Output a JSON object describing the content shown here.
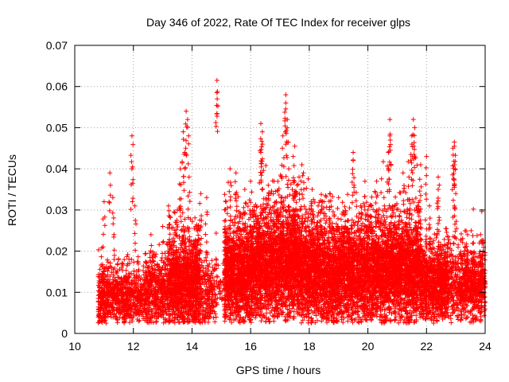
{
  "chart_data": {
    "type": "scatter",
    "title": "Day 346 of 2022, Rate Of TEC Index for receiver glps",
    "xlabel": "GPS time / hours",
    "ylabel": "ROTI / TECUs",
    "xlim": [
      10,
      24
    ],
    "ylim": [
      0,
      0.07
    ],
    "xticks": [
      10,
      12,
      14,
      16,
      18,
      20,
      22,
      24
    ],
    "xtick_labels": [
      "10",
      "12",
      "14",
      "16",
      "18",
      "20",
      "22",
      "24"
    ],
    "yticks": [
      0,
      0.01,
      0.02,
      0.03,
      0.04,
      0.05,
      0.06,
      0.07
    ],
    "ytick_labels": [
      "0",
      "0.01",
      "0.02",
      "0.03",
      "0.04",
      "0.05",
      "0.06",
      "0.07"
    ],
    "grid": true,
    "marker": "+",
    "color": "#ff0000",
    "series": [
      {
        "name": "ROTI",
        "clusters": [
          {
            "t0": 10.8,
            "t1": 11.85,
            "density": 55,
            "base": 0.0085,
            "spread": 0.006,
            "peaks": [
              [
                11.2,
                0.039
              ],
              [
                11.3,
                0.033
              ],
              [
                11.0,
                0.032
              ]
            ]
          },
          {
            "t0": 11.85,
            "t1": 12.4,
            "density": 40,
            "base": 0.009,
            "spread": 0.006,
            "peaks": [
              [
                11.95,
                0.048
              ],
              [
                11.95,
                0.04
              ],
              [
                12.05,
                0.031
              ]
            ]
          },
          {
            "t0": 12.4,
            "t1": 13.2,
            "density": 55,
            "base": 0.01,
            "spread": 0.007,
            "peaks": [
              [
                12.6,
                0.024
              ],
              [
                13.0,
                0.026
              ]
            ]
          },
          {
            "t0": 13.2,
            "t1": 14.3,
            "density": 110,
            "base": 0.012,
            "spread": 0.009,
            "peaks": [
              [
                13.8,
                0.054
              ],
              [
                13.85,
                0.052
              ],
              [
                13.7,
                0.049
              ],
              [
                13.75,
                0.044
              ],
              [
                13.6,
                0.04
              ],
              [
                13.9,
                0.038
              ],
              [
                13.2,
                0.031
              ],
              [
                13.5,
                0.03
              ]
            ]
          },
          {
            "t0": 14.3,
            "t1": 14.85,
            "density": 35,
            "base": 0.01,
            "spread": 0.007,
            "peaks": [
              [
                14.3,
                0.034
              ],
              [
                14.5,
                0.033
              ]
            ]
          },
          {
            "t0": 14.85,
            "t1": 15.1,
            "density": 10,
            "base": 0.011,
            "spread": 0.005,
            "peaks": [
              [
                14.85,
                0.0615
              ],
              [
                14.85,
                0.0585
              ]
            ]
          },
          {
            "t0": 15.1,
            "t1": 16.2,
            "density": 120,
            "base": 0.014,
            "spread": 0.01,
            "peaks": [
              [
                15.3,
                0.04
              ],
              [
                15.5,
                0.039
              ],
              [
                15.8,
                0.035
              ],
              [
                16.0,
                0.037
              ]
            ]
          },
          {
            "t0": 16.2,
            "t1": 16.9,
            "density": 120,
            "base": 0.016,
            "spread": 0.011,
            "peaks": [
              [
                16.35,
                0.051
              ],
              [
                16.4,
                0.049
              ],
              [
                16.4,
                0.046
              ],
              [
                16.35,
                0.044
              ],
              [
                16.6,
                0.036
              ],
              [
                16.8,
                0.037
              ]
            ]
          },
          {
            "t0": 16.9,
            "t1": 17.6,
            "density": 130,
            "base": 0.017,
            "spread": 0.011,
            "peaks": [
              [
                17.2,
                0.058
              ],
              [
                17.2,
                0.056
              ],
              [
                17.25,
                0.052
              ],
              [
                17.1,
                0.048
              ],
              [
                17.45,
                0.043
              ],
              [
                17.3,
                0.04
              ],
              [
                17.5,
                0.037
              ]
            ]
          },
          {
            "t0": 17.6,
            "t1": 18.4,
            "density": 120,
            "base": 0.015,
            "spread": 0.01,
            "peaks": [
              [
                17.75,
                0.041
              ],
              [
                17.8,
                0.039
              ],
              [
                17.65,
                0.038
              ],
              [
                18.1,
                0.035
              ]
            ]
          },
          {
            "t0": 18.4,
            "t1": 19.3,
            "density": 110,
            "base": 0.014,
            "spread": 0.01,
            "peaks": [
              [
                18.5,
                0.032
              ],
              [
                18.7,
                0.034
              ],
              [
                19.0,
                0.033
              ]
            ]
          },
          {
            "t0": 19.3,
            "t1": 20.1,
            "density": 110,
            "base": 0.014,
            "spread": 0.01,
            "peaks": [
              [
                19.5,
                0.044
              ],
              [
                19.5,
                0.042
              ],
              [
                19.9,
                0.037
              ],
              [
                19.75,
                0.031
              ]
            ]
          },
          {
            "t0": 20.1,
            "t1": 20.9,
            "density": 120,
            "base": 0.015,
            "spread": 0.01,
            "peaks": [
              [
                20.75,
                0.052
              ],
              [
                20.75,
                0.048
              ],
              [
                20.7,
                0.044
              ],
              [
                20.7,
                0.04
              ],
              [
                20.3,
                0.037
              ],
              [
                20.55,
                0.033
              ]
            ]
          },
          {
            "t0": 20.9,
            "t1": 21.8,
            "density": 120,
            "base": 0.015,
            "spread": 0.01,
            "peaks": [
              [
                21.55,
                0.052
              ],
              [
                21.6,
                0.05
              ],
              [
                21.5,
                0.048
              ],
              [
                21.5,
                0.046
              ],
              [
                21.2,
                0.039
              ],
              [
                21.8,
                0.041
              ],
              [
                21.4,
                0.038
              ]
            ]
          },
          {
            "t0": 21.8,
            "t1": 22.75,
            "density": 90,
            "base": 0.012,
            "spread": 0.008,
            "peaks": [
              [
                22.4,
                0.038
              ],
              [
                22.4,
                0.035
              ],
              [
                22.0,
                0.043
              ],
              [
                22.1,
                0.031
              ]
            ]
          },
          {
            "t0": 22.75,
            "t1": 23.15,
            "density": 45,
            "base": 0.012,
            "spread": 0.008,
            "peaks": [
              [
                22.95,
                0.0465
              ],
              [
                22.95,
                0.0455
              ],
              [
                22.9,
                0.045
              ],
              [
                22.95,
                0.041
              ],
              [
                23.0,
                0.034
              ],
              [
                22.95,
                0.031
              ]
            ]
          },
          {
            "t0": 23.15,
            "t1": 24.0,
            "density": 70,
            "base": 0.0115,
            "spread": 0.007,
            "peaks": [
              [
                23.4,
                0.024
              ],
              [
                23.6,
                0.022
              ],
              [
                23.9,
                0.019
              ]
            ]
          }
        ]
      }
    ]
  }
}
